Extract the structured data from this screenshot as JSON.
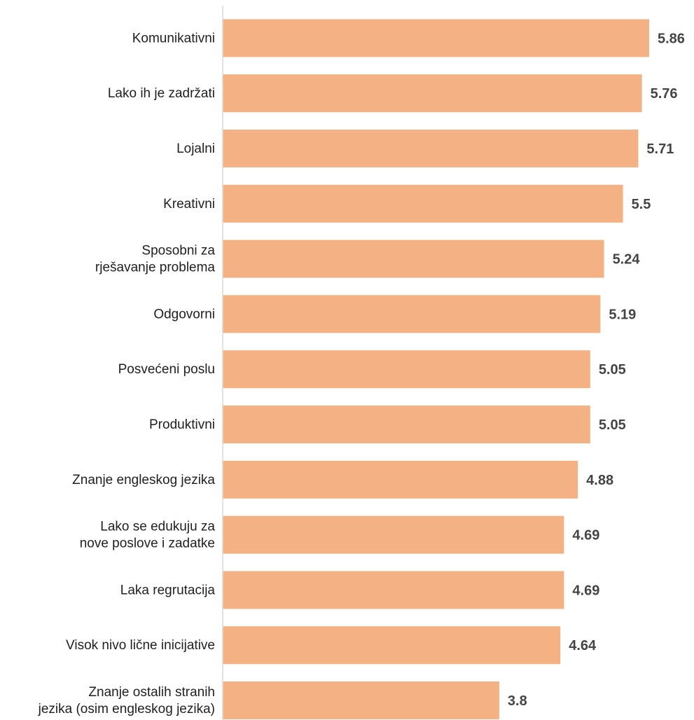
{
  "chart_data": {
    "type": "bar",
    "orientation": "horizontal",
    "categories": [
      "Komunikativni",
      "Lako ih je zadržati",
      "Lojalni",
      "Kreativni",
      "Sposobni za\nrješavanje problema",
      "Odgovorni",
      "Posvećeni poslu",
      "Produktivni",
      "Znanje engleskog jezika",
      "Lako se edukuju za\nnove  poslove i zadatke",
      "Laka regrutacija",
      "Visok nivo lične inicijative",
      "Znanje ostalih stranih\njezika (osim engleskog  jezika)"
    ],
    "values": [
      5.86,
      5.76,
      5.71,
      5.5,
      5.24,
      5.19,
      5.05,
      5.05,
      4.88,
      4.69,
      4.69,
      4.64,
      3.8
    ],
    "value_labels": [
      "5.86",
      "5.76",
      "5.71",
      "5.5",
      "5.24",
      "5.19",
      "5.05",
      "5.05",
      "4.88",
      "4.69",
      "4.69",
      "4.64",
      "3.8"
    ],
    "xlim": [
      0,
      5.86
    ],
    "grid": false,
    "data_labels": true,
    "colors": {
      "bar": "#F4B183",
      "axis": "#D9D9D9",
      "value_text": "#444444",
      "label_text": "#1f1f1f"
    }
  }
}
